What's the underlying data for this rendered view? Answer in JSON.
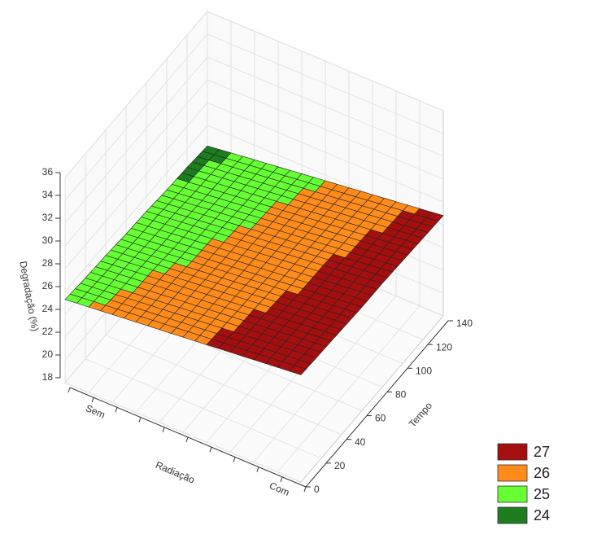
{
  "chart_data": {
    "type": "surface3d",
    "zlabel": "Degradação (%)",
    "xlabel": "Radiação",
    "ylabel": "Tempo",
    "categories": [
      "Sem",
      "Com"
    ],
    "y": [
      0,
      20,
      40,
      60,
      80,
      100,
      120,
      140
    ],
    "z": [
      [
        25.3,
        25.1,
        25.0,
        24.8,
        24.7,
        24.5,
        24.4,
        24.2
      ],
      [
        27.4,
        27.3,
        27.2,
        27.1,
        27.1,
        27.0,
        26.9,
        26.8
      ]
    ],
    "zlim": [
      18,
      36
    ],
    "zticks": [
      18,
      20,
      22,
      24,
      26,
      28,
      30,
      32,
      34,
      36
    ],
    "ylim": [
      0,
      140
    ],
    "yticks": [
      0,
      20,
      40,
      60,
      80,
      100,
      120,
      140
    ],
    "levels": [
      27,
      26,
      25,
      24
    ],
    "level_colors": [
      "#a50f0f",
      "#ff8c1a",
      "#66ff33",
      "#1e7d1e"
    ],
    "grid": true
  }
}
